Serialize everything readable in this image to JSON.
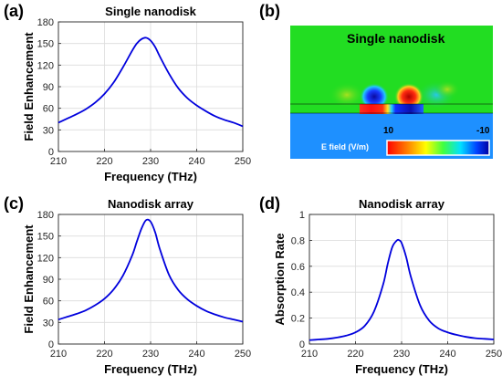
{
  "panels": {
    "a": "(a)",
    "b": "(b)",
    "c": "(c)",
    "d": "(d)"
  },
  "simulation": {
    "title": "Single nanodisk",
    "colorbar_label": "E field (V/m)",
    "colorbar_max": "10",
    "colorbar_min": "-10",
    "colors": {
      "background": "#22dd22",
      "substrate": "#1e90ff",
      "hot": "#ff1a1a",
      "cold": "#1010c8"
    }
  },
  "chart_data": [
    {
      "id": "a",
      "type": "line",
      "title": "Single nanodisk",
      "xlabel": "Frequency (THz)",
      "ylabel": "Field Enhancement",
      "xlim": [
        210,
        250
      ],
      "ylim": [
        0,
        180
      ],
      "xticks": [
        "210",
        "220",
        "230",
        "240",
        "250"
      ],
      "yticks": [
        "0",
        "30",
        "60",
        "90",
        "120",
        "150",
        "180"
      ],
      "grid": true,
      "color": "#0000dd",
      "x": [
        210,
        212,
        214,
        216,
        218,
        220,
        222,
        224,
        226,
        227,
        228,
        229,
        230,
        231,
        232,
        234,
        236,
        238,
        240,
        242,
        244,
        246,
        248,
        250
      ],
      "y": [
        40,
        46,
        52,
        59,
        68,
        80,
        96,
        117,
        140,
        150,
        156,
        158,
        154,
        145,
        132,
        108,
        88,
        74,
        64,
        56,
        49,
        44,
        40,
        35
      ]
    },
    {
      "id": "c",
      "type": "line",
      "title": "Nanodisk array",
      "xlabel": "Frequency (THz)",
      "ylabel": "Field Enhancement",
      "xlim": [
        210,
        250
      ],
      "ylim": [
        0,
        180
      ],
      "xticks": [
        "210",
        "220",
        "230",
        "240",
        "250"
      ],
      "yticks": [
        "0",
        "30",
        "60",
        "90",
        "120",
        "150",
        "180"
      ],
      "grid": true,
      "color": "#0000dd",
      "x": [
        210,
        212,
        214,
        216,
        218,
        220,
        222,
        224,
        226,
        227,
        228,
        229,
        230,
        231,
        232,
        234,
        236,
        238,
        240,
        242,
        244,
        246,
        248,
        250
      ],
      "y": [
        34,
        38,
        42,
        47,
        54,
        63,
        76,
        95,
        123,
        142,
        160,
        172,
        170,
        155,
        132,
        96,
        75,
        62,
        53,
        46,
        41,
        37,
        34,
        31
      ]
    },
    {
      "id": "d",
      "type": "line",
      "title": "Nanodisk array",
      "xlabel": "Frequency (THz)",
      "ylabel": "Absorption Rate",
      "xlim": [
        210,
        250
      ],
      "ylim": [
        0,
        1
      ],
      "xticks": [
        "210",
        "220",
        "230",
        "240",
        "250"
      ],
      "yticks": [
        "0",
        "0.2",
        "0.4",
        "0.6",
        "0.8",
        "1"
      ],
      "grid": true,
      "color": "#0000dd",
      "x": [
        210,
        212,
        214,
        216,
        218,
        220,
        222,
        224,
        226,
        227,
        228,
        229,
        229.5,
        230,
        231,
        232,
        234,
        236,
        238,
        240,
        242,
        244,
        246,
        248,
        250
      ],
      "y": [
        0.03,
        0.035,
        0.04,
        0.05,
        0.065,
        0.09,
        0.14,
        0.25,
        0.46,
        0.62,
        0.75,
        0.8,
        0.8,
        0.78,
        0.67,
        0.52,
        0.3,
        0.18,
        0.12,
        0.09,
        0.07,
        0.055,
        0.045,
        0.04,
        0.035
      ]
    }
  ]
}
